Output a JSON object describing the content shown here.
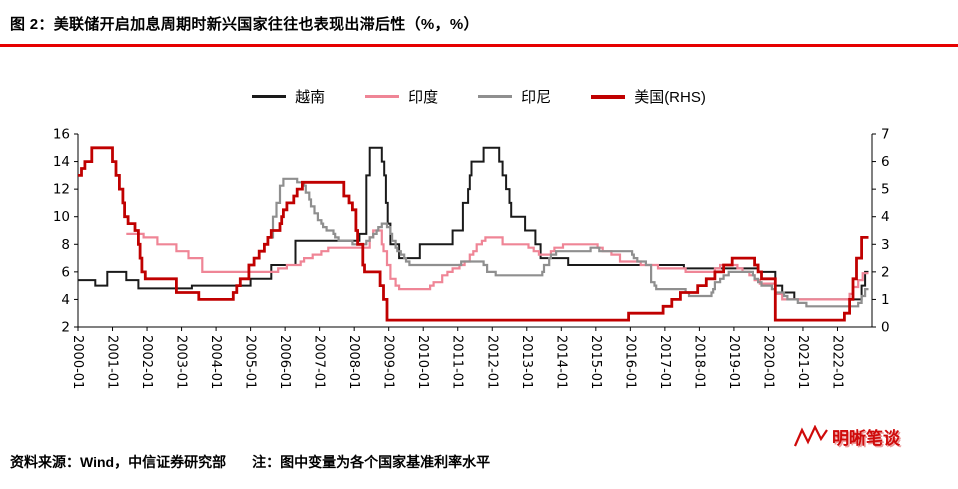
{
  "header": {
    "title": "图 2：美联储开启加息周期时新兴国家往往也表现出滞后性（%，%）"
  },
  "footer": {
    "source": "资料来源：Wind，中信证券研究部",
    "note": "注：图中变量为各个国家基准利率水平"
  },
  "watermark": {
    "text": "明晰笔谈"
  },
  "chart_data": {
    "type": "line",
    "title": "",
    "grid": false,
    "legend_position": "top",
    "unit": "%",
    "left_axis": {
      "min": 2,
      "max": 16,
      "ticks": [
        2,
        4,
        6,
        8,
        10,
        12,
        14,
        16
      ]
    },
    "right_axis": {
      "min": 0,
      "max": 7,
      "ticks": [
        0,
        1,
        2,
        3,
        4,
        5,
        6,
        7
      ]
    },
    "x_axis": {
      "min": 2000,
      "max": 2023,
      "data_end": 2022.9,
      "tick_labels": [
        "2000-01",
        "2001-01",
        "2002-01",
        "2003-01",
        "2004-01",
        "2005-01",
        "2006-01",
        "2007-01",
        "2008-01",
        "2009-01",
        "2010-01",
        "2011-01",
        "2012-01",
        "2013-01",
        "2014-01",
        "2015-01",
        "2016-01",
        "2017-01",
        "2018-01",
        "2019-01",
        "2020-01",
        "2021-01",
        "2022-01"
      ]
    },
    "series": [
      {
        "id": "vietnam",
        "name": "越南",
        "color": "#1a1a1a",
        "axis": "left",
        "width": 2,
        "points": [
          [
            2000.0,
            5.4
          ],
          [
            2000.5,
            5.0
          ],
          [
            2000.85,
            6.0
          ],
          [
            2001.4,
            5.4
          ],
          [
            2001.75,
            4.8
          ],
          [
            2003.3,
            5.0
          ],
          [
            2005.0,
            5.5
          ],
          [
            2005.6,
            6.5
          ],
          [
            2006.3,
            8.25
          ],
          [
            2008.15,
            8.75
          ],
          [
            2008.35,
            13.0
          ],
          [
            2008.45,
            15.0
          ],
          [
            2008.8,
            14.0
          ],
          [
            2008.87,
            13.0
          ],
          [
            2008.92,
            11.0
          ],
          [
            2008.97,
            9.5
          ],
          [
            2009.05,
            8.0
          ],
          [
            2009.3,
            7.0
          ],
          [
            2009.9,
            8.0
          ],
          [
            2010.85,
            9.0
          ],
          [
            2011.15,
            11.0
          ],
          [
            2011.3,
            12.0
          ],
          [
            2011.35,
            13.0
          ],
          [
            2011.4,
            14.0
          ],
          [
            2011.75,
            15.0
          ],
          [
            2012.2,
            14.0
          ],
          [
            2012.3,
            13.0
          ],
          [
            2012.4,
            12.0
          ],
          [
            2012.5,
            11.0
          ],
          [
            2012.55,
            10.0
          ],
          [
            2012.95,
            9.0
          ],
          [
            2013.25,
            8.0
          ],
          [
            2013.4,
            7.0
          ],
          [
            2014.2,
            6.5
          ],
          [
            2017.55,
            6.25
          ],
          [
            2019.7,
            6.0
          ],
          [
            2020.2,
            5.0
          ],
          [
            2020.4,
            4.5
          ],
          [
            2020.75,
            4.0
          ],
          [
            2022.7,
            5.0
          ],
          [
            2022.8,
            6.0
          ]
        ]
      },
      {
        "id": "india",
        "name": "印度",
        "color": "#ef8596",
        "axis": "left",
        "width": 2.2,
        "points": [
          [
            2001.4,
            8.75
          ],
          [
            2001.9,
            8.5
          ],
          [
            2002.3,
            8.0
          ],
          [
            2002.85,
            7.5
          ],
          [
            2003.2,
            7.0
          ],
          [
            2003.6,
            6.0
          ],
          [
            2005.8,
            6.25
          ],
          [
            2006.05,
            6.5
          ],
          [
            2006.45,
            6.75
          ],
          [
            2006.55,
            7.0
          ],
          [
            2006.8,
            7.25
          ],
          [
            2007.05,
            7.5
          ],
          [
            2007.25,
            7.75
          ],
          [
            2008.45,
            8.5
          ],
          [
            2008.55,
            9.0
          ],
          [
            2008.8,
            8.0
          ],
          [
            2008.85,
            7.5
          ],
          [
            2008.95,
            6.5
          ],
          [
            2009.05,
            5.5
          ],
          [
            2009.2,
            5.0
          ],
          [
            2009.3,
            4.75
          ],
          [
            2010.2,
            5.0
          ],
          [
            2010.3,
            5.25
          ],
          [
            2010.55,
            5.75
          ],
          [
            2010.7,
            6.0
          ],
          [
            2010.85,
            6.25
          ],
          [
            2011.05,
            6.5
          ],
          [
            2011.2,
            6.75
          ],
          [
            2011.35,
            7.25
          ],
          [
            2011.45,
            7.5
          ],
          [
            2011.55,
            8.0
          ],
          [
            2011.7,
            8.25
          ],
          [
            2011.8,
            8.5
          ],
          [
            2012.3,
            8.0
          ],
          [
            2013.05,
            7.75
          ],
          [
            2013.2,
            7.5
          ],
          [
            2013.35,
            7.25
          ],
          [
            2013.7,
            7.5
          ],
          [
            2013.8,
            7.75
          ],
          [
            2014.05,
            8.0
          ],
          [
            2015.05,
            7.75
          ],
          [
            2015.2,
            7.5
          ],
          [
            2015.45,
            7.25
          ],
          [
            2015.7,
            6.75
          ],
          [
            2016.3,
            6.5
          ],
          [
            2016.8,
            6.25
          ],
          [
            2017.6,
            6.0
          ],
          [
            2018.45,
            6.25
          ],
          [
            2018.6,
            6.5
          ],
          [
            2019.1,
            6.25
          ],
          [
            2019.25,
            6.0
          ],
          [
            2019.45,
            5.75
          ],
          [
            2019.6,
            5.4
          ],
          [
            2019.75,
            5.15
          ],
          [
            2020.2,
            4.4
          ],
          [
            2020.4,
            4.0
          ],
          [
            2022.35,
            4.4
          ],
          [
            2022.45,
            4.9
          ],
          [
            2022.6,
            5.4
          ],
          [
            2022.73,
            5.9
          ]
        ]
      },
      {
        "id": "indonesia",
        "name": "印尼",
        "color": "#8f8f8f",
        "axis": "left",
        "width": 2.2,
        "points": [
          [
            2005.5,
            8.5
          ],
          [
            2005.65,
            10.0
          ],
          [
            2005.75,
            11.0
          ],
          [
            2005.85,
            12.25
          ],
          [
            2005.95,
            12.75
          ],
          [
            2006.35,
            12.5
          ],
          [
            2006.55,
            12.25
          ],
          [
            2006.6,
            11.75
          ],
          [
            2006.7,
            11.25
          ],
          [
            2006.75,
            10.75
          ],
          [
            2006.85,
            10.25
          ],
          [
            2006.95,
            9.75
          ],
          [
            2007.05,
            9.5
          ],
          [
            2007.1,
            9.25
          ],
          [
            2007.2,
            9.0
          ],
          [
            2007.4,
            8.75
          ],
          [
            2007.45,
            8.5
          ],
          [
            2007.55,
            8.25
          ],
          [
            2007.95,
            8.0
          ],
          [
            2008.35,
            8.25
          ],
          [
            2008.45,
            8.5
          ],
          [
            2008.55,
            8.75
          ],
          [
            2008.65,
            9.0
          ],
          [
            2008.7,
            9.25
          ],
          [
            2008.8,
            9.5
          ],
          [
            2008.95,
            9.25
          ],
          [
            2009.05,
            8.75
          ],
          [
            2009.1,
            8.25
          ],
          [
            2009.2,
            7.75
          ],
          [
            2009.25,
            7.5
          ],
          [
            2009.35,
            7.25
          ],
          [
            2009.45,
            7.0
          ],
          [
            2009.5,
            6.75
          ],
          [
            2009.6,
            6.5
          ],
          [
            2011.1,
            6.75
          ],
          [
            2011.75,
            6.5
          ],
          [
            2011.85,
            6.0
          ],
          [
            2012.1,
            5.75
          ],
          [
            2013.45,
            6.0
          ],
          [
            2013.5,
            6.5
          ],
          [
            2013.65,
            7.0
          ],
          [
            2013.7,
            7.25
          ],
          [
            2013.85,
            7.5
          ],
          [
            2014.85,
            7.75
          ],
          [
            2015.1,
            7.5
          ],
          [
            2016.05,
            7.25
          ],
          [
            2016.1,
            7.0
          ],
          [
            2016.2,
            6.75
          ],
          [
            2016.45,
            6.5
          ],
          [
            2016.6,
            5.25
          ],
          [
            2016.7,
            5.0
          ],
          [
            2016.75,
            4.75
          ],
          [
            2017.6,
            4.5
          ],
          [
            2017.7,
            4.25
          ],
          [
            2018.35,
            4.5
          ],
          [
            2018.4,
            4.75
          ],
          [
            2018.45,
            5.25
          ],
          [
            2018.6,
            5.5
          ],
          [
            2018.7,
            5.75
          ],
          [
            2018.85,
            6.0
          ],
          [
            2019.55,
            5.75
          ],
          [
            2019.6,
            5.5
          ],
          [
            2019.7,
            5.25
          ],
          [
            2019.8,
            5.0
          ],
          [
            2020.1,
            4.75
          ],
          [
            2020.2,
            4.5
          ],
          [
            2020.45,
            4.25
          ],
          [
            2020.55,
            4.0
          ],
          [
            2020.85,
            3.75
          ],
          [
            2021.1,
            3.5
          ],
          [
            2022.6,
            3.75
          ],
          [
            2022.7,
            4.25
          ],
          [
            2022.8,
            4.75
          ]
        ]
      },
      {
        "id": "us",
        "name": "美国(RHS)",
        "color": "#c00000",
        "axis": "right",
        "width": 2.8,
        "points": [
          [
            2000.0,
            5.5
          ],
          [
            2000.1,
            5.75
          ],
          [
            2000.2,
            6.0
          ],
          [
            2000.4,
            6.5
          ],
          [
            2001.0,
            6.0
          ],
          [
            2001.1,
            5.5
          ],
          [
            2001.2,
            5.0
          ],
          [
            2001.3,
            4.5
          ],
          [
            2001.35,
            4.0
          ],
          [
            2001.45,
            3.75
          ],
          [
            2001.65,
            3.5
          ],
          [
            2001.75,
            3.0
          ],
          [
            2001.8,
            2.5
          ],
          [
            2001.85,
            2.0
          ],
          [
            2001.95,
            1.75
          ],
          [
            2002.85,
            1.25
          ],
          [
            2003.5,
            1.0
          ],
          [
            2004.5,
            1.25
          ],
          [
            2004.6,
            1.5
          ],
          [
            2004.7,
            1.75
          ],
          [
            2004.95,
            2.25
          ],
          [
            2005.1,
            2.5
          ],
          [
            2005.25,
            2.75
          ],
          [
            2005.4,
            3.0
          ],
          [
            2005.5,
            3.25
          ],
          [
            2005.6,
            3.5
          ],
          [
            2005.85,
            3.75
          ],
          [
            2005.9,
            4.0
          ],
          [
            2005.95,
            4.25
          ],
          [
            2006.05,
            4.5
          ],
          [
            2006.25,
            4.75
          ],
          [
            2006.35,
            5.0
          ],
          [
            2006.5,
            5.25
          ],
          [
            2007.7,
            4.75
          ],
          [
            2007.85,
            4.5
          ],
          [
            2007.95,
            4.25
          ],
          [
            2008.05,
            3.5
          ],
          [
            2008.1,
            3.0
          ],
          [
            2008.25,
            2.25
          ],
          [
            2008.3,
            2.0
          ],
          [
            2008.75,
            1.5
          ],
          [
            2008.85,
            1.0
          ],
          [
            2008.95,
            0.25
          ],
          [
            2015.95,
            0.5
          ],
          [
            2016.95,
            0.75
          ],
          [
            2017.2,
            1.0
          ],
          [
            2017.45,
            1.25
          ],
          [
            2017.95,
            1.5
          ],
          [
            2018.2,
            1.75
          ],
          [
            2018.45,
            2.0
          ],
          [
            2018.7,
            2.25
          ],
          [
            2018.95,
            2.5
          ],
          [
            2019.6,
            2.25
          ],
          [
            2019.7,
            2.0
          ],
          [
            2019.8,
            1.75
          ],
          [
            2020.2,
            0.25
          ],
          [
            2022.2,
            0.5
          ],
          [
            2022.35,
            1.0
          ],
          [
            2022.45,
            1.75
          ],
          [
            2022.55,
            2.5
          ],
          [
            2022.7,
            3.25
          ]
        ]
      }
    ]
  }
}
